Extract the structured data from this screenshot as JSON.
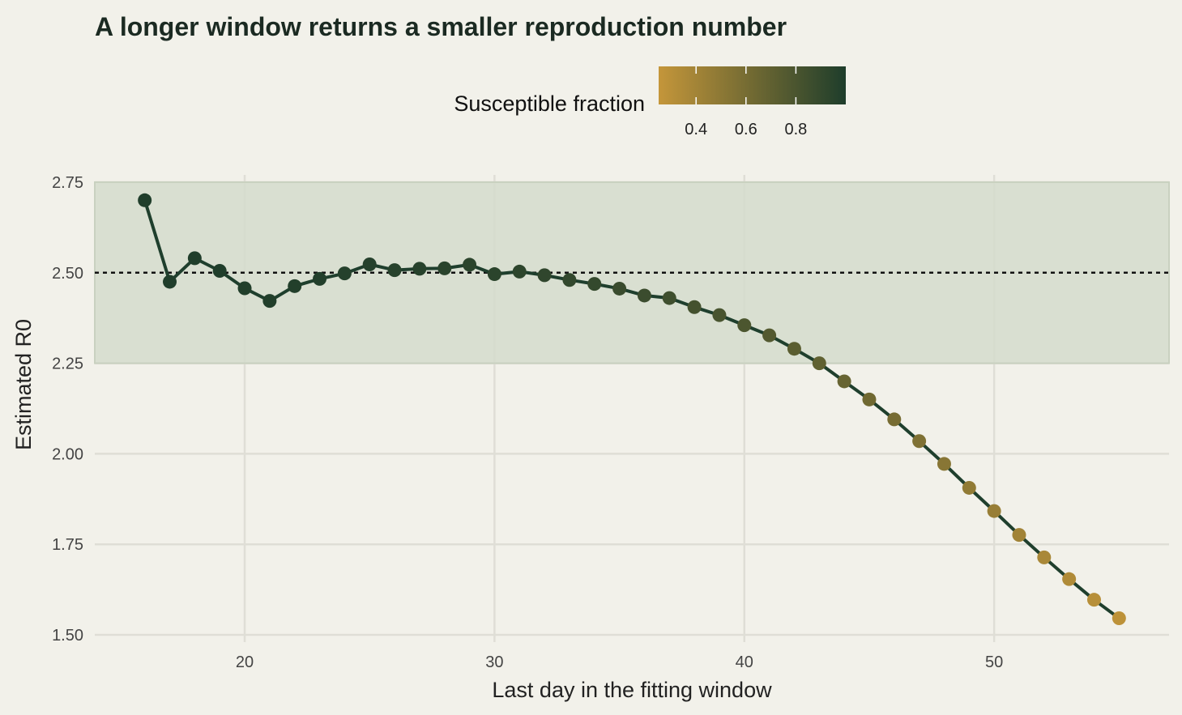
{
  "chart_data": {
    "type": "line",
    "title": "A longer window returns a smaller reproduction number",
    "xlabel": "Last day in the fitting window",
    "ylabel": "Estimated R0",
    "xlim": [
      14,
      57
    ],
    "ylim": [
      1.48,
      2.77
    ],
    "x_ticks": [
      "20",
      "30",
      "40",
      "50"
    ],
    "y_ticks": [
      "1.50",
      "1.75",
      "2.00",
      "2.25",
      "2.50",
      "2.75"
    ],
    "x_tick_values": [
      20,
      30,
      40,
      50
    ],
    "y_tick_values": [
      1.5,
      1.75,
      2.0,
      2.25,
      2.5,
      2.75
    ],
    "reference_line": {
      "y": 2.5,
      "style": "dotted",
      "color": "#111111"
    },
    "shaded_band": {
      "ymin": 2.25,
      "ymax": 2.75,
      "color": "#d5dccd"
    },
    "legend": {
      "title": "Susceptible fraction",
      "placement": "top",
      "ticks": [
        "0.4",
        "0.6",
        "0.8"
      ],
      "tick_values": [
        0.4,
        0.6,
        0.8
      ],
      "range": [
        0.25,
        1.0
      ],
      "low_color": "#c4963a",
      "high_color": "#1e3d2b"
    },
    "line_color": "#1f3f2d",
    "grid": true,
    "points": [
      {
        "x": 16,
        "y": 2.7,
        "s": 0.99
      },
      {
        "x": 17,
        "y": 2.475,
        "s": 0.99
      },
      {
        "x": 18,
        "y": 2.54,
        "s": 0.99
      },
      {
        "x": 19,
        "y": 2.505,
        "s": 0.99
      },
      {
        "x": 20,
        "y": 2.457,
        "s": 0.98
      },
      {
        "x": 21,
        "y": 2.422,
        "s": 0.98
      },
      {
        "x": 22,
        "y": 2.463,
        "s": 0.98
      },
      {
        "x": 23,
        "y": 2.483,
        "s": 0.98
      },
      {
        "x": 24,
        "y": 2.498,
        "s": 0.97
      },
      {
        "x": 25,
        "y": 2.523,
        "s": 0.97
      },
      {
        "x": 26,
        "y": 2.507,
        "s": 0.96
      },
      {
        "x": 27,
        "y": 2.511,
        "s": 0.96
      },
      {
        "x": 28,
        "y": 2.512,
        "s": 0.95
      },
      {
        "x": 29,
        "y": 2.522,
        "s": 0.94
      },
      {
        "x": 30,
        "y": 2.496,
        "s": 0.94
      },
      {
        "x": 31,
        "y": 2.503,
        "s": 0.93
      },
      {
        "x": 32,
        "y": 2.493,
        "s": 0.92
      },
      {
        "x": 33,
        "y": 2.48,
        "s": 0.91
      },
      {
        "x": 34,
        "y": 2.469,
        "s": 0.9
      },
      {
        "x": 35,
        "y": 2.456,
        "s": 0.88
      },
      {
        "x": 36,
        "y": 2.437,
        "s": 0.87
      },
      {
        "x": 37,
        "y": 2.43,
        "s": 0.85
      },
      {
        "x": 38,
        "y": 2.405,
        "s": 0.83
      },
      {
        "x": 39,
        "y": 2.383,
        "s": 0.81
      },
      {
        "x": 40,
        "y": 2.355,
        "s": 0.79
      },
      {
        "x": 41,
        "y": 2.327,
        "s": 0.76
      },
      {
        "x": 42,
        "y": 2.29,
        "s": 0.73
      },
      {
        "x": 43,
        "y": 2.25,
        "s": 0.7
      },
      {
        "x": 44,
        "y": 2.2,
        "s": 0.67
      },
      {
        "x": 45,
        "y": 2.15,
        "s": 0.63
      },
      {
        "x": 46,
        "y": 2.095,
        "s": 0.6
      },
      {
        "x": 47,
        "y": 2.035,
        "s": 0.56
      },
      {
        "x": 48,
        "y": 1.972,
        "s": 0.52
      },
      {
        "x": 49,
        "y": 1.906,
        "s": 0.48
      },
      {
        "x": 50,
        "y": 1.842,
        "s": 0.45
      },
      {
        "x": 51,
        "y": 1.776,
        "s": 0.41
      },
      {
        "x": 52,
        "y": 1.714,
        "s": 0.37
      },
      {
        "x": 53,
        "y": 1.654,
        "s": 0.34
      },
      {
        "x": 54,
        "y": 1.597,
        "s": 0.31
      },
      {
        "x": 55,
        "y": 1.546,
        "s": 0.28
      }
    ]
  }
}
